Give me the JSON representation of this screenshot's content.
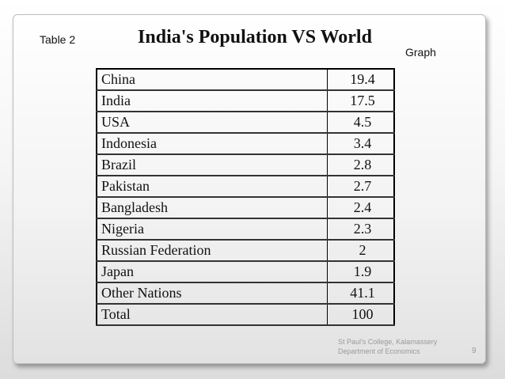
{
  "slide": {
    "table_label": "Table 2",
    "title": "India's Population VS World",
    "graph_link": "Graph",
    "footer_line1": "St Paul's College, Kalamassery",
    "footer_line2": "Department of Economics",
    "page_number": "9"
  },
  "table": {
    "rows": [
      {
        "country": "China",
        "value": "19.4"
      },
      {
        "country": "India",
        "value": "17.5"
      },
      {
        "country": "USA",
        "value": "4.5"
      },
      {
        "country": "Indonesia",
        "value": "3.4"
      },
      {
        "country": "Brazil",
        "value": "2.8"
      },
      {
        "country": "Pakistan",
        "value": "2.7"
      },
      {
        "country": "Bangladesh",
        "value": "2.4"
      },
      {
        "country": "Nigeria",
        "value": "2.3"
      },
      {
        "country": "Russian Federation",
        "value": "2"
      },
      {
        "country": "Japan",
        "value": "1.9"
      },
      {
        "country": "Other Nations",
        "value": "41.1"
      },
      {
        "country": "Total",
        "value": "100"
      }
    ]
  }
}
